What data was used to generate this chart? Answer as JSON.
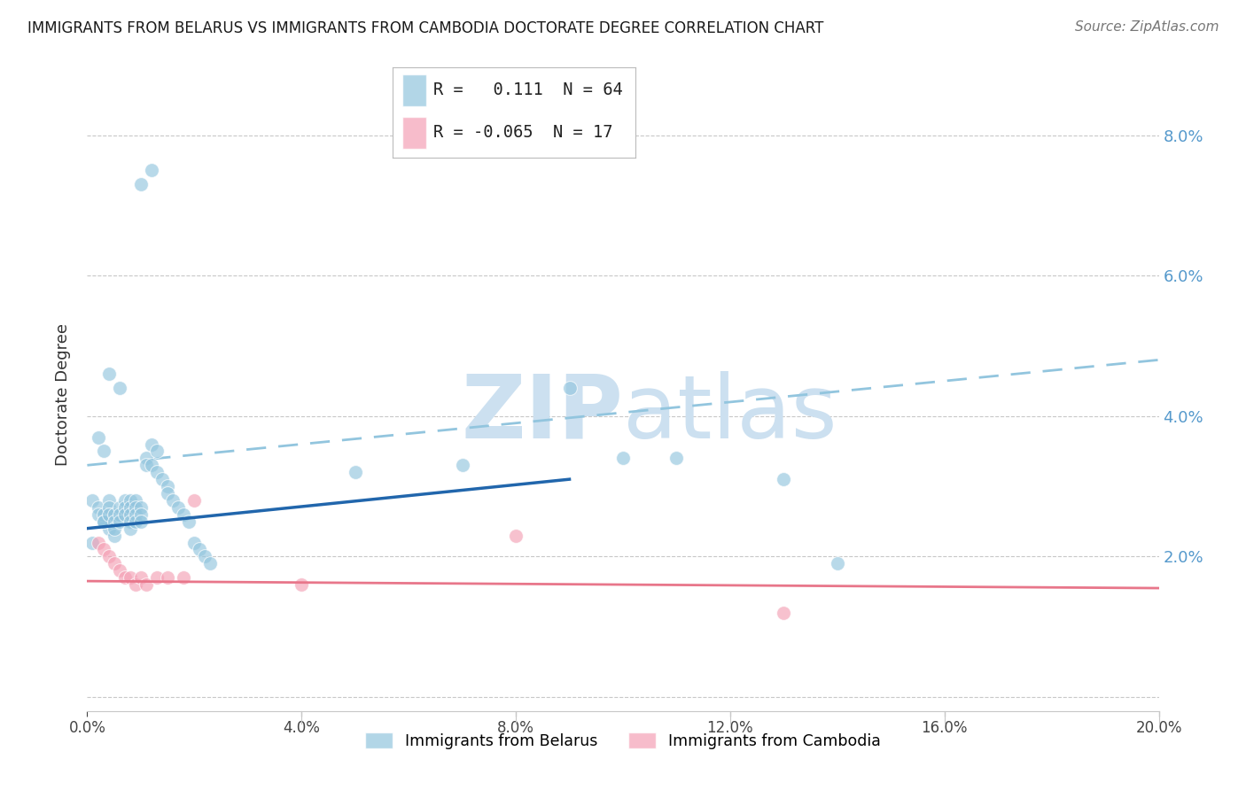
{
  "title": "IMMIGRANTS FROM BELARUS VS IMMIGRANTS FROM CAMBODIA DOCTORATE DEGREE CORRELATION CHART",
  "source": "Source: ZipAtlas.com",
  "ylabel": "Doctorate Degree",
  "xlim": [
    0.0,
    0.2
  ],
  "ylim": [
    -0.002,
    0.088
  ],
  "yticks": [
    0.0,
    0.02,
    0.04,
    0.06,
    0.08
  ],
  "xticks": [
    0.0,
    0.04,
    0.08,
    0.12,
    0.16,
    0.2
  ],
  "legend_r_belarus": "0.111",
  "legend_n_belarus": "64",
  "legend_r_cambodia": "-0.065",
  "legend_n_cambodia": "17",
  "belarus_color": "#92c5de",
  "cambodia_color": "#f4a0b5",
  "trend_blue_solid": "#2166ac",
  "trend_blue_dashed": "#92c5de",
  "trend_pink": "#e8768a",
  "watermark_color": "#cce0f0",
  "background_color": "#ffffff",
  "grid_color": "#c8c8c8",
  "axis_label_color": "#5599cc",
  "belarus_x": [
    0.01,
    0.012,
    0.004,
    0.006,
    0.002,
    0.003,
    0.003,
    0.004,
    0.005,
    0.001,
    0.001,
    0.002,
    0.002,
    0.003,
    0.003,
    0.003,
    0.004,
    0.004,
    0.004,
    0.005,
    0.005,
    0.005,
    0.006,
    0.006,
    0.006,
    0.007,
    0.007,
    0.007,
    0.008,
    0.008,
    0.008,
    0.008,
    0.008,
    0.009,
    0.009,
    0.009,
    0.009,
    0.01,
    0.01,
    0.01,
    0.011,
    0.011,
    0.012,
    0.012,
    0.013,
    0.013,
    0.014,
    0.015,
    0.015,
    0.016,
    0.017,
    0.018,
    0.019,
    0.02,
    0.021,
    0.022,
    0.023,
    0.05,
    0.07,
    0.09,
    0.1,
    0.11,
    0.13,
    0.14
  ],
  "belarus_y": [
    0.073,
    0.075,
    0.046,
    0.044,
    0.037,
    0.035,
    0.025,
    0.024,
    0.023,
    0.022,
    0.028,
    0.027,
    0.026,
    0.026,
    0.025,
    0.025,
    0.028,
    0.027,
    0.026,
    0.026,
    0.025,
    0.024,
    0.027,
    0.026,
    0.025,
    0.028,
    0.027,
    0.026,
    0.028,
    0.027,
    0.026,
    0.025,
    0.024,
    0.028,
    0.027,
    0.026,
    0.025,
    0.027,
    0.026,
    0.025,
    0.034,
    0.033,
    0.036,
    0.033,
    0.035,
    0.032,
    0.031,
    0.03,
    0.029,
    0.028,
    0.027,
    0.026,
    0.025,
    0.022,
    0.021,
    0.02,
    0.019,
    0.032,
    0.033,
    0.044,
    0.034,
    0.034,
    0.031,
    0.019
  ],
  "cambodia_x": [
    0.002,
    0.003,
    0.004,
    0.005,
    0.006,
    0.007,
    0.008,
    0.009,
    0.01,
    0.011,
    0.013,
    0.015,
    0.018,
    0.02,
    0.04,
    0.08,
    0.13
  ],
  "cambodia_y": [
    0.022,
    0.021,
    0.02,
    0.019,
    0.018,
    0.017,
    0.017,
    0.016,
    0.017,
    0.016,
    0.017,
    0.017,
    0.017,
    0.028,
    0.016,
    0.023,
    0.012
  ],
  "trend_blue_x_solid_start": 0.0,
  "trend_blue_x_solid_end": 0.09,
  "trend_blue_y_solid_start": 0.024,
  "trend_blue_y_solid_end": 0.031,
  "trend_blue_x_dashed_start": 0.0,
  "trend_blue_x_dashed_end": 0.2,
  "trend_blue_y_dashed_start": 0.033,
  "trend_blue_y_dashed_end": 0.048,
  "trend_pink_x_start": 0.0,
  "trend_pink_x_end": 0.2,
  "trend_pink_y_start": 0.0165,
  "trend_pink_y_end": 0.0155
}
